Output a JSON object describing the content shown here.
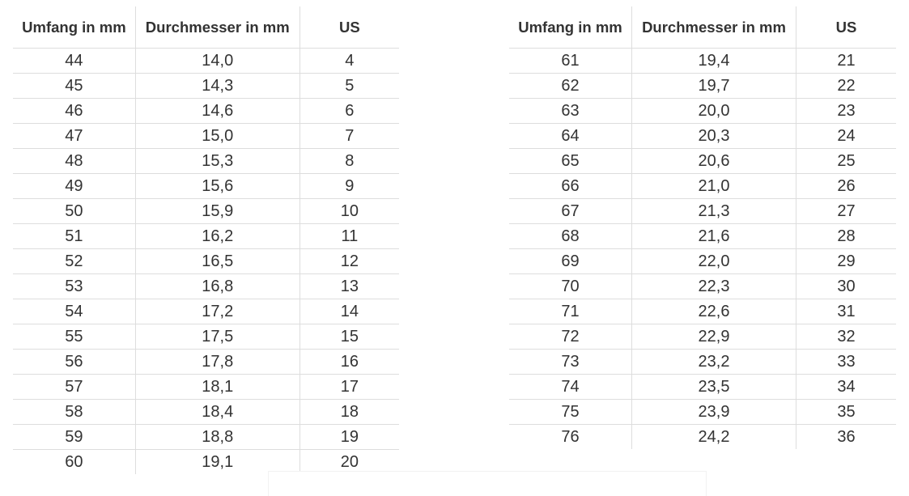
{
  "headers": [
    "Umfang in mm",
    "Durchmesser in mm",
    "US"
  ],
  "left_table": [
    [
      "44",
      "14,0",
      "4"
    ],
    [
      "45",
      "14,3",
      "5"
    ],
    [
      "46",
      "14,6",
      "6"
    ],
    [
      "47",
      "15,0",
      "7"
    ],
    [
      "48",
      "15,3",
      "8"
    ],
    [
      "49",
      "15,6",
      "9"
    ],
    [
      "50",
      "15,9",
      "10"
    ],
    [
      "51",
      "16,2",
      "11"
    ],
    [
      "52",
      "16,5",
      "12"
    ],
    [
      "53",
      "16,8",
      "13"
    ],
    [
      "54",
      "17,2",
      "14"
    ],
    [
      "55",
      "17,5",
      "15"
    ],
    [
      "56",
      "17,8",
      "16"
    ],
    [
      "57",
      "18,1",
      "17"
    ],
    [
      "58",
      "18,4",
      "18"
    ],
    [
      "59",
      "18,8",
      "19"
    ],
    [
      "60",
      "19,1",
      "20"
    ]
  ],
  "right_table": [
    [
      "61",
      "19,4",
      "21"
    ],
    [
      "62",
      "19,7",
      "22"
    ],
    [
      "63",
      "20,0",
      "23"
    ],
    [
      "64",
      "20,3",
      "24"
    ],
    [
      "65",
      "20,6",
      "25"
    ],
    [
      "66",
      "21,0",
      "26"
    ],
    [
      "67",
      "21,3",
      "27"
    ],
    [
      "68",
      "21,6",
      "28"
    ],
    [
      "69",
      "22,0",
      "29"
    ],
    [
      "70",
      "22,3",
      "30"
    ],
    [
      "71",
      "22,6",
      "31"
    ],
    [
      "72",
      "22,9",
      "32"
    ],
    [
      "73",
      "23,2",
      "33"
    ],
    [
      "74",
      "23,5",
      "34"
    ],
    [
      "75",
      "23,9",
      "35"
    ],
    [
      "76",
      "24,2",
      "36"
    ]
  ]
}
